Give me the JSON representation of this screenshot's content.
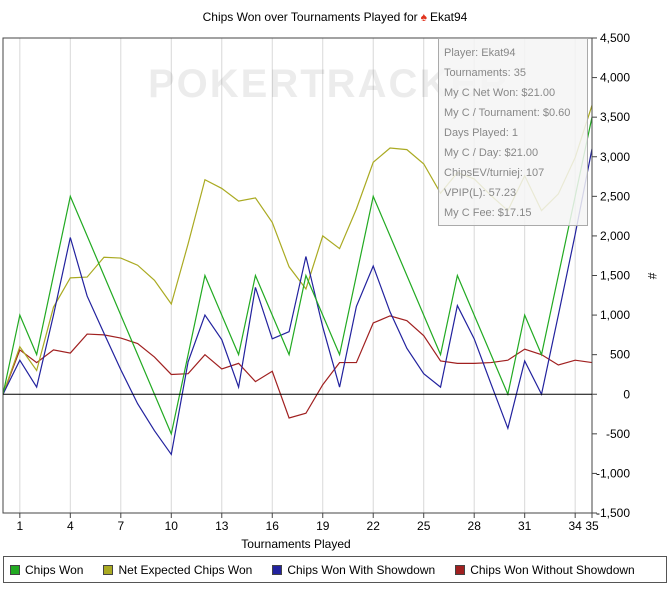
{
  "title": {
    "prefix": "Chips Won over Tournaments Played for",
    "player": "Ekat94"
  },
  "watermark": "POKERTRACKER",
  "tooltip": {
    "lines": [
      "Player: Ekat94",
      "Tournaments: 35",
      "My C Net Won: $21.00",
      "My C / Tournament: $0.60",
      "Days Played: 1",
      "My C / Day: $21.00",
      "ChipsEV/turniej: 107",
      "VPIP(L): 57.23",
      "My C Fee: $17.15"
    ]
  },
  "legend": [
    {
      "label": "Chips Won",
      "color": "#22aa22"
    },
    {
      "label": "Net Expected Chips Won",
      "color": "#aaaa22"
    },
    {
      "label": "Chips Won With Showdown",
      "color": "#22229e"
    },
    {
      "label": "Chips Won Without Showdown",
      "color": "#a02020"
    }
  ],
  "chart_data": {
    "type": "line",
    "xlabel": "Tournaments Played",
    "ylabel": "#",
    "xlim": [
      0,
      35
    ],
    "ylim": [
      -1500,
      4500
    ],
    "x_ticks": [
      1,
      4,
      7,
      10,
      13,
      16,
      19,
      22,
      25,
      28,
      31,
      34,
      35
    ],
    "y_ticks": [
      -1500,
      -1000,
      -500,
      0,
      500,
      1000,
      1500,
      2000,
      2500,
      3000,
      3500,
      4000,
      4500
    ],
    "y_tick_labels": [
      "-1,500",
      "-1,000",
      "-500",
      "0",
      "500",
      "1,000",
      "1,500",
      "2,000",
      "2,500",
      "3,000",
      "3,500",
      "4,000",
      "4,500"
    ],
    "grid": "vertical",
    "series": [
      {
        "name": "Chips Won",
        "color": "#22aa22",
        "x": [
          0,
          1,
          2,
          3,
          4,
          5,
          6,
          7,
          8,
          9,
          10,
          11,
          12,
          13,
          14,
          15,
          16,
          17,
          18,
          19,
          20,
          21,
          22,
          23,
          24,
          25,
          26,
          27,
          28,
          29,
          30,
          31,
          32,
          33,
          34,
          35
        ],
        "values": [
          0,
          1000,
          500,
          1500,
          2500,
          2000,
          1500,
          1000,
          500,
          0,
          -500,
          500,
          1500,
          1000,
          500,
          1500,
          1000,
          500,
          1500,
          1000,
          500,
          1500,
          2500,
          2000,
          1500,
          1000,
          500,
          1500,
          1000,
          500,
          0,
          1000,
          500,
          1500,
          2500,
          3500
        ]
      },
      {
        "name": "Net Expected Chips Won",
        "color": "#aaaa22",
        "x": [
          0,
          1,
          2,
          3,
          4,
          5,
          6,
          7,
          8,
          9,
          10,
          11,
          12,
          13,
          14,
          15,
          16,
          17,
          18,
          19,
          20,
          21,
          22,
          23,
          24,
          25,
          26,
          27,
          28,
          29,
          30,
          31,
          32,
          33,
          34,
          35
        ],
        "values": [
          0,
          600,
          300,
          1100,
          1470,
          1480,
          1730,
          1720,
          1630,
          1440,
          1140,
          1900,
          2710,
          2600,
          2440,
          2480,
          2170,
          1610,
          1330,
          2000,
          1840,
          2340,
          2930,
          3110,
          3090,
          2910,
          2540,
          2800,
          2720,
          2510,
          2320,
          2760,
          2320,
          2530,
          2990,
          3650
        ]
      },
      {
        "name": "Chips Won With Showdown",
        "color": "#22229e",
        "x": [
          0,
          1,
          2,
          3,
          4,
          5,
          6,
          7,
          8,
          9,
          10,
          11,
          12,
          13,
          14,
          15,
          16,
          17,
          18,
          19,
          20,
          21,
          22,
          23,
          24,
          25,
          26,
          27,
          28,
          29,
          30,
          31,
          32,
          33,
          34,
          35
        ],
        "values": [
          0,
          430,
          90,
          1000,
          1980,
          1240,
          770,
          310,
          -120,
          -460,
          -760,
          410,
          1000,
          690,
          90,
          1350,
          700,
          790,
          1740,
          850,
          90,
          1110,
          1620,
          1040,
          580,
          260,
          90,
          1120,
          700,
          130,
          -430,
          420,
          0,
          1000,
          2020,
          3100
        ]
      },
      {
        "name": "Chips Won Without Showdown",
        "color": "#a02020",
        "x": [
          0,
          1,
          2,
          3,
          4,
          5,
          6,
          7,
          8,
          9,
          10,
          11,
          12,
          13,
          14,
          15,
          16,
          17,
          18,
          19,
          20,
          21,
          22,
          23,
          24,
          25,
          26,
          27,
          28,
          29,
          30,
          31,
          32,
          33,
          34,
          35
        ],
        "values": [
          0,
          560,
          400,
          560,
          520,
          760,
          750,
          710,
          640,
          470,
          250,
          260,
          500,
          320,
          390,
          160,
          290,
          -300,
          -240,
          120,
          400,
          400,
          900,
          990,
          930,
          740,
          420,
          390,
          390,
          400,
          430,
          570,
          500,
          370,
          430,
          400
        ]
      }
    ]
  }
}
